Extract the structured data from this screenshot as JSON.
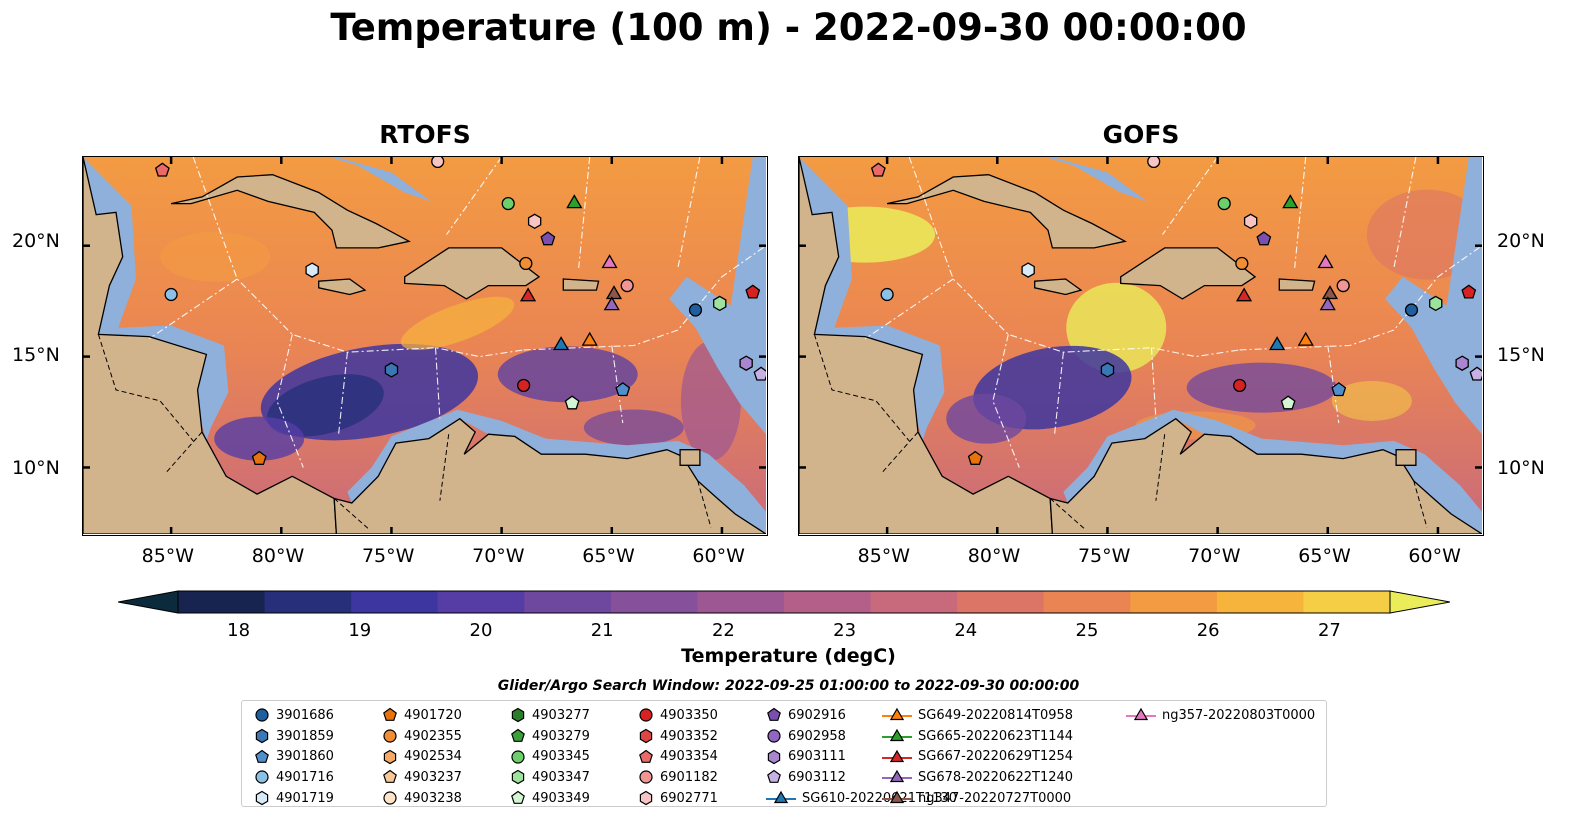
{
  "title": "Temperature (100 m) - 2022-09-30 00:00:00",
  "panels": [
    {
      "title": "RTOFS"
    },
    {
      "title": "GOFS"
    }
  ],
  "lon_labels": [
    "85°W",
    "80°W",
    "75°W",
    "70°W",
    "65°W",
    "60°W"
  ],
  "lat_labels": [
    "20°N",
    "15°N",
    "10°N"
  ],
  "colorbar": {
    "label": "Temperature (degC)",
    "min": 18,
    "max": 27,
    "ticks": [
      "18",
      "19",
      "20",
      "21",
      "22",
      "23",
      "24",
      "25",
      "26",
      "27"
    ],
    "colors": [
      "#0b2b3c",
      "#16244f",
      "#272f7a",
      "#3d36a0",
      "#553da5",
      "#6e479f",
      "#86509a",
      "#9d5793",
      "#b35f8a",
      "#c96a7c",
      "#dc7565",
      "#ea8553",
      "#f39b42",
      "#f7b43d",
      "#f6ce45",
      "#eaec5a"
    ]
  },
  "legend": {
    "title": "Glider/Argo Search Window: 2022-09-25 01:00:00 to 2022-09-30 00:00:00",
    "columns": [
      [
        {
          "label": "3901686",
          "marker": "circle",
          "color": "#1f5fa0"
        },
        {
          "label": "3901859",
          "marker": "hexagon",
          "color": "#3a78b5"
        },
        {
          "label": "3901860",
          "marker": "pentagon",
          "color": "#4f8fcc"
        },
        {
          "label": "4901716",
          "marker": "circle",
          "color": "#8cc0e6"
        },
        {
          "label": "4901719",
          "marker": "hexagon",
          "color": "#d7eaf7"
        }
      ],
      [
        {
          "label": "4901720",
          "marker": "pentagon",
          "color": "#e8730c"
        },
        {
          "label": "4902355",
          "marker": "circle",
          "color": "#f08d35"
        },
        {
          "label": "4902534",
          "marker": "hexagon",
          "color": "#f6a866"
        },
        {
          "label": "4903237",
          "marker": "pentagon",
          "color": "#fac796"
        },
        {
          "label": "4903238",
          "marker": "circle",
          "color": "#fde3c8"
        }
      ],
      [
        {
          "label": "4903277",
          "marker": "hexagon",
          "color": "#2a7e2a"
        },
        {
          "label": "4903279",
          "marker": "pentagon",
          "color": "#3aa03a"
        },
        {
          "label": "4903345",
          "marker": "circle",
          "color": "#6ccf6c"
        },
        {
          "label": "4903347",
          "marker": "hexagon",
          "color": "#9de39d"
        },
        {
          "label": "4903349",
          "marker": "pentagon",
          "color": "#d3f5d3"
        }
      ],
      [
        {
          "label": "4903350",
          "marker": "circle",
          "color": "#d62222"
        },
        {
          "label": "4903352",
          "marker": "hexagon",
          "color": "#e04545"
        },
        {
          "label": "4903354",
          "marker": "pentagon",
          "color": "#ea6a6a"
        },
        {
          "label": "6901182",
          "marker": "circle",
          "color": "#f29595"
        },
        {
          "label": "6902771",
          "marker": "hexagon",
          "color": "#f8c4c4"
        }
      ],
      [
        {
          "label": "6902916",
          "marker": "pentagon",
          "color": "#7a4fb0"
        },
        {
          "label": "6902958",
          "marker": "circle",
          "color": "#9066c2"
        },
        {
          "label": "6903111",
          "marker": "hexagon",
          "color": "#a887d0"
        },
        {
          "label": "6903112",
          "marker": "pentagon",
          "color": "#c7b0e4"
        },
        {
          "label": "SG610-20220621T1130",
          "marker": "triangle-line",
          "color": "#1f77b4"
        }
      ],
      [
        {
          "label": "SG649-20220814T0958",
          "marker": "triangle-line",
          "color": "#ff7f0e"
        },
        {
          "label": "SG665-20220623T1144",
          "marker": "triangle-line",
          "color": "#2ca02c"
        },
        {
          "label": "SG667-20220629T1254",
          "marker": "triangle-line",
          "color": "#d62728"
        },
        {
          "label": "SG678-20220622T1240",
          "marker": "triangle-line",
          "color": "#9467bd"
        },
        {
          "label": "ng347-20220727T0000",
          "marker": "triangle-line",
          "color": "#8c564b"
        }
      ],
      [
        {
          "label": "ng357-20220803T0000",
          "marker": "triangle-line",
          "color": "#e377c2"
        }
      ]
    ]
  },
  "map_extent": {
    "lon_min": -89,
    "lon_max": -58,
    "lat_min": 7,
    "lat_max": 24
  },
  "colors": {
    "land": "#d2b48c",
    "shelf": "#8fb0da",
    "deep": "#0b2432"
  }
}
